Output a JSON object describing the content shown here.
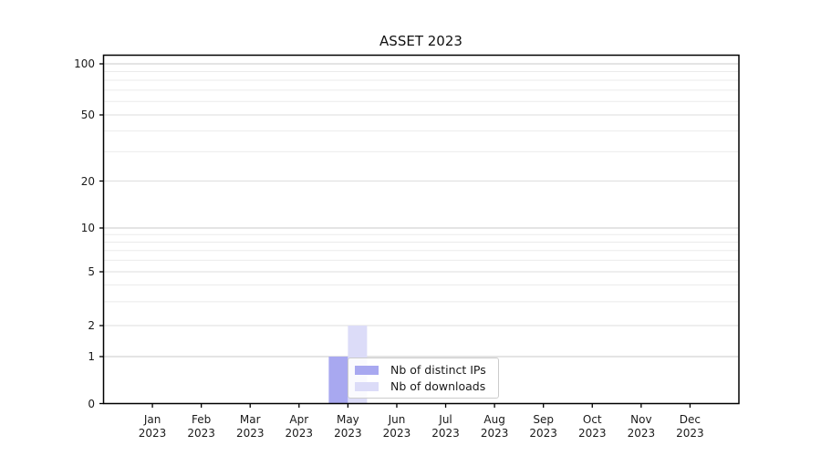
{
  "chart_data": {
    "type": "bar",
    "title": "ASSET 2023",
    "categories": [
      "Jan 2023",
      "Feb 2023",
      "Mar 2023",
      "Apr 2023",
      "May 2023",
      "Jun 2023",
      "Jul 2023",
      "Aug 2023",
      "Sep 2023",
      "Oct 2023",
      "Nov 2023",
      "Dec 2023"
    ],
    "series": [
      {
        "name": "Nb of distinct IPs",
        "color": "#a8a8f0",
        "values": [
          0,
          0,
          0,
          0,
          1,
          0,
          0,
          0,
          0,
          0,
          0,
          0
        ]
      },
      {
        "name": "Nb of downloads",
        "color": "#dcdcf8",
        "values": [
          0,
          0,
          0,
          0,
          2,
          0,
          0,
          0,
          0,
          0,
          0,
          0
        ]
      }
    ],
    "xlabel": "",
    "ylabel": "",
    "yscale": "symlog",
    "yticks": [
      0,
      1,
      2,
      5,
      10,
      20,
      50,
      100
    ],
    "ylim": [
      0,
      110
    ],
    "grid": "horizontal-log-minors",
    "legend_position": "inside lower-center",
    "colors": {
      "major_gridline": "#c8c8c8",
      "mid_gridline": "#dedede",
      "minor_gridline": "#ebebeb",
      "spine": "#000000",
      "background": "#ffffff"
    }
  }
}
